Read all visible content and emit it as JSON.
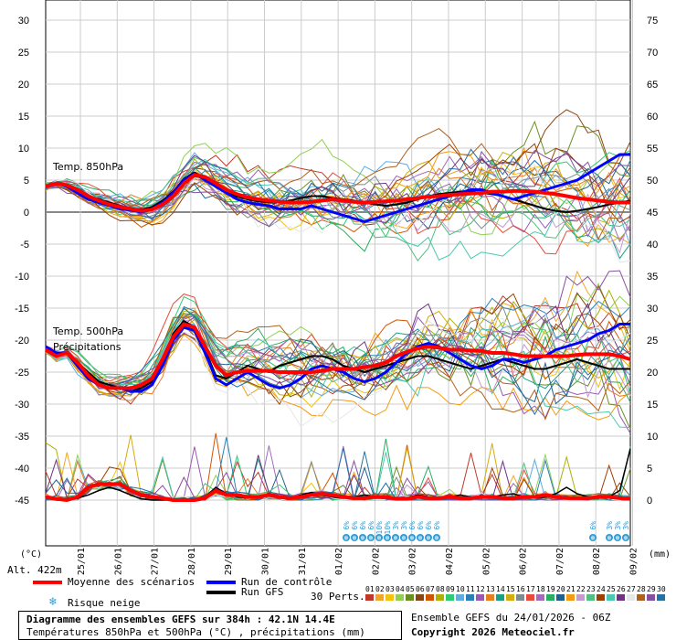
{
  "chart_data": {
    "type": "line",
    "title": "Diagramme des ensembles GEFS sur 384h : 42.1N 14.4E",
    "subtitle": "Températures 850hPa et 500hPa (°C) , précipitations (mm)",
    "left_axis": {
      "unit": "(°C)",
      "ticks": [
        30,
        25,
        20,
        15,
        10,
        5,
        0,
        -5,
        -10,
        -15,
        -20,
        -25,
        -30,
        -35,
        -40,
        -45
      ]
    },
    "right_axis": {
      "unit": "(mm)",
      "ticks": [
        75,
        70,
        65,
        60,
        55,
        50,
        45,
        40,
        35,
        30,
        25,
        20,
        15,
        10,
        5,
        0
      ]
    },
    "altitude_label": "Alt. 422m",
    "x_tick_labels": [
      "25/01",
      "26/01",
      "27/01",
      "28/01",
      "29/01",
      "30/01",
      "31/01",
      "01/02",
      "02/02",
      "03/02",
      "04/02",
      "05/02",
      "06/02",
      "07/02",
      "08/02",
      "09/02"
    ],
    "panel_labels": {
      "t850": "Temp. 850hPa",
      "t500": "Temp. 500hPa",
      "precip": "Précipitations"
    },
    "series_names": {
      "mean": "Moyenne des scénarios",
      "control": "Run de contrôle",
      "gfs": "Run GFS",
      "snow": "Risque neige",
      "perts": "30 Perts."
    },
    "t850_mean": [
      4,
      4.5,
      4.2,
      3.5,
      2.5,
      1.8,
      1.2,
      0.8,
      0.5,
      0.2,
      0.4,
      1.2,
      2.5,
      4.5,
      5.8,
      5.5,
      4.5,
      3.5,
      2.8,
      2.3,
      2.0,
      1.8,
      1.6,
      1.5,
      1.5,
      1.6,
      1.8,
      2.0,
      1.8,
      1.6,
      1.5,
      1.6,
      1.7,
      1.8,
      2.0,
      2.2,
      2.4,
      2.5,
      2.7,
      2.8,
      2.9,
      3.0,
      3.2,
      3.2,
      3.3,
      3.3,
      3.2,
      3.0,
      2.8,
      2.5,
      2.2,
      2.0,
      1.8,
      1.6,
      1.5,
      1.5
    ],
    "t500_mean": [
      -21.5,
      -22.5,
      -22,
      -23.5,
      -25.5,
      -27,
      -27.5,
      -27.5,
      -27.5,
      -27,
      -26,
      -23,
      -19.5,
      -17.5,
      -18,
      -21,
      -24,
      -25.5,
      -25,
      -24.8,
      -24.8,
      -24.8,
      -25,
      -25,
      -25,
      -25,
      -24.8,
      -24.5,
      -24.5,
      -24.5,
      -24.2,
      -24,
      -23.5,
      -22.5,
      -21.8,
      -21.3,
      -21,
      -21.2,
      -21.5,
      -21.5,
      -21.6,
      -21.7,
      -22,
      -22,
      -22.2,
      -22.5,
      -22.5,
      -22.5,
      -22.5,
      -22.5,
      -22.3,
      -22.2,
      -22.2,
      -22.2,
      -22.5,
      -23
    ],
    "precip_mean": [
      0.5,
      0.2,
      0,
      0.5,
      2,
      2.5,
      2.5,
      2.5,
      1.5,
      0.8,
      0.5,
      0.3,
      0,
      0,
      0,
      0.3,
      1.5,
      0.8,
      0.8,
      0.5,
      0.5,
      0.8,
      0.5,
      0.3,
      0.5,
      0.8,
      1.0,
      0.8,
      0.5,
      0.3,
      0.3,
      0.5,
      0.5,
      0.2,
      0.2,
      0.5,
      0.3,
      0.3,
      0.5,
      0.3,
      0.3,
      0.5,
      0.5,
      0.3,
      0.3,
      0.5,
      0.5,
      0.8,
      0.5,
      0.3,
      0.3,
      0.3,
      0.5,
      0.5,
      0.3,
      0.2
    ],
    "t850_control": [
      4,
      4.5,
      4,
      3,
      2,
      1.5,
      1,
      0.5,
      0.3,
      0,
      0.5,
      1.5,
      3,
      5,
      6,
      5,
      4,
      3,
      2,
      1.5,
      1.2,
      1,
      0.5,
      0.5,
      0.5,
      1,
      0.5,
      0,
      -0.5,
      -1,
      -1.5,
      -1,
      -0.5,
      0,
      0.5,
      1,
      1.5,
      2,
      2.5,
      3,
      3.5,
      3.5,
      3,
      2.5,
      2,
      2.5,
      3,
      3.5,
      4,
      4.5,
      5,
      6,
      7,
      8,
      9,
      9
    ],
    "t500_control": [
      -21,
      -22,
      -22,
      -24,
      -26,
      -27,
      -27.5,
      -27.5,
      -28,
      -28,
      -27,
      -24,
      -20,
      -18,
      -18.5,
      -22,
      -26,
      -27,
      -26,
      -25,
      -26,
      -27,
      -27.5,
      -27,
      -26,
      -24.5,
      -24,
      -24.5,
      -25,
      -26,
      -26.5,
      -26,
      -25,
      -23.5,
      -22,
      -21,
      -20.5,
      -21,
      -22,
      -23,
      -24,
      -24.5,
      -24,
      -23,
      -23,
      -23.5,
      -23,
      -22.5,
      -21.5,
      -21,
      -20.5,
      -20,
      -19,
      -18.5,
      -17.5,
      -17.5
    ],
    "t850_gfs": [
      4,
      4.4,
      4.1,
      3.4,
      2.6,
      2,
      1.5,
      1,
      0.6,
      0.4,
      0.8,
      1.8,
      3.2,
      5.2,
      6.2,
      5.2,
      4.2,
      3.2,
      2.4,
      2,
      1.7,
      1.5,
      1.5,
      1.8,
      2.2,
      2.5,
      2.5,
      2.2,
      2,
      1.8,
      1.5,
      1.2,
      1,
      1.2,
      1.5,
      2,
      2.5,
      2.8,
      3,
      3.2,
      3.2,
      3,
      2.8,
      2.5,
      2,
      1.5,
      1,
      0.5,
      0.2,
      0,
      0.2,
      0.5,
      0.8,
      1.2,
      1.5,
      1.8
    ],
    "t500_gfs": [
      -21.5,
      -22.5,
      -22,
      -23.5,
      -25,
      -26.5,
      -27,
      -27.5,
      -28,
      -27.5,
      -26.5,
      -23.5,
      -19,
      -17,
      -18,
      -21.5,
      -25.5,
      -26,
      -25,
      -24,
      -24.5,
      -25,
      -24,
      -23.5,
      -23,
      -22.5,
      -22.5,
      -23,
      -24,
      -24.5,
      -25,
      -24.5,
      -24,
      -23.5,
      -23,
      -22.5,
      -22.5,
      -23,
      -23.5,
      -24,
      -24.5,
      -24,
      -23.5,
      -23,
      -23.5,
      -24,
      -24.5,
      -24.5,
      -24,
      -23.5,
      -23,
      -23.5,
      -24,
      -24.5,
      -24.5,
      -24.5
    ],
    "precip_gfs": [
      0.5,
      0,
      0,
      0.3,
      0.8,
      1.5,
      2,
      1.5,
      0.8,
      0.2,
      0,
      0,
      0,
      0,
      0,
      0.5,
      2,
      1,
      0.5,
      0.3,
      0.5,
      1,
      0.5,
      0.3,
      0.8,
      1.2,
      0.8,
      0.5,
      0.3,
      0.5,
      0.8,
      0.5,
      0.3,
      0.2,
      0.3,
      0.8,
      0.5,
      0.3,
      0.5,
      0.8,
      0.5,
      0.3,
      0.5,
      0.8,
      1,
      0.5,
      0.3,
      0.5,
      1,
      2,
      1,
      0.5,
      0.3,
      0.5,
      1.5,
      8
    ],
    "snow_pct_labels": [
      "6%",
      "6%",
      "6%",
      "6%",
      "10%",
      "10%",
      "3%",
      "3%",
      "6%",
      "6%",
      "6%",
      "6%",
      "6%",
      "3%",
      "3%",
      "3%",
      "3%"
    ],
    "pert_numbers": [
      "01",
      "02",
      "03",
      "04",
      "05",
      "06",
      "07",
      "08",
      "09",
      "10",
      "11",
      "12",
      "13",
      "14",
      "15",
      "16",
      "17",
      "18",
      "19",
      "20",
      "21",
      "22",
      "23",
      "24",
      "25",
      "26",
      "27",
      "28",
      "29",
      "30"
    ],
    "pert_colors": [
      "#c0392b",
      "#f5a623",
      "#f1c40f",
      "#8fd14f",
      "#6b8e23",
      "#8b4513",
      "#d35400",
      "#b0b000",
      "#2ecc71",
      "#5dade2",
      "#2980b9",
      "#9b59b6",
      "#e67e22",
      "#16a085",
      "#d4ac0d",
      "#7f8c8d",
      "#e74c3c",
      "#a569bd",
      "#27ae60",
      "#1f618d",
      "#f39c12",
      "#c39bd3",
      "#52be80",
      "#a04000",
      "#48c9b0",
      "#6c3483",
      "#e5e7e9",
      "#af601a",
      "#884ea0",
      "#2471a3"
    ]
  },
  "footer": {
    "run_info": "Ensemble GEFS du 24/01/2026 - 06Z",
    "copyright": "Copyright 2026 Meteociel.fr"
  }
}
